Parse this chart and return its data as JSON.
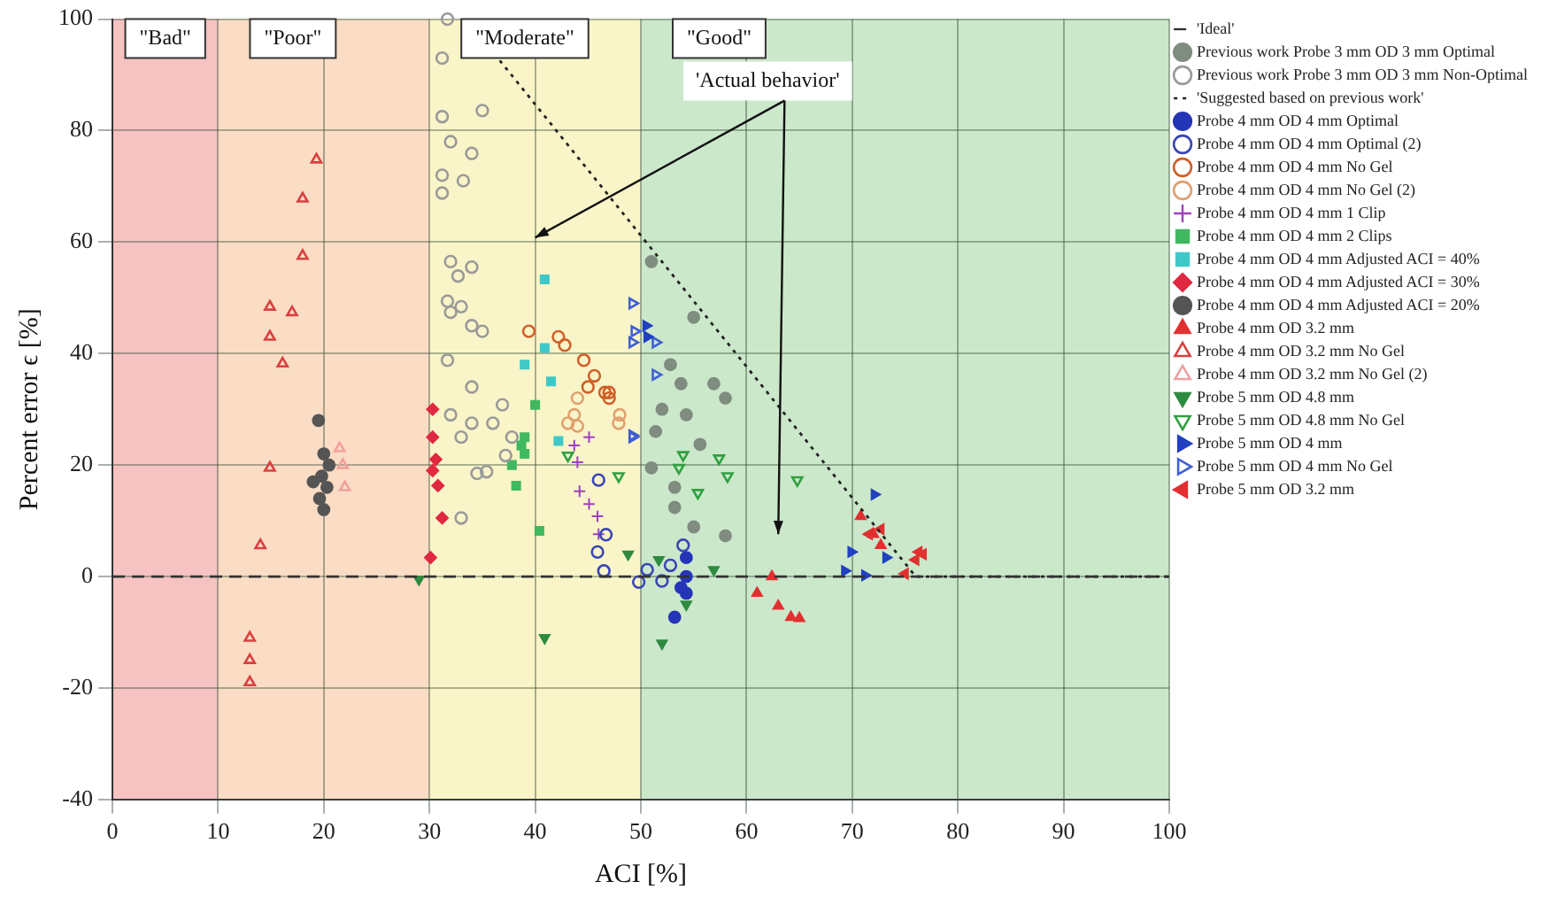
{
  "chart_data": {
    "type": "scatter",
    "xlabel": "ACI [%]",
    "ylabel": "Percent error ϵ [%]",
    "xlim": [
      0,
      100
    ],
    "xticks": [
      0,
      10,
      20,
      30,
      40,
      50,
      60,
      70,
      80,
      90,
      100
    ],
    "ylim": [
      -40,
      100
    ],
    "yticks": [
      -40,
      -20,
      0,
      20,
      40,
      60,
      80,
      100
    ],
    "grid": true,
    "legend": "top right",
    "bands": [
      {
        "axis": "x",
        "from": 0,
        "to": 10,
        "label": "\"Bad\"",
        "color": "#f6c2c2"
      },
      {
        "axis": "x",
        "from": 10,
        "to": 30,
        "label": "\"Poor\"",
        "color": "#fbdcc4"
      },
      {
        "axis": "x",
        "from": 30,
        "to": 50,
        "label": "\"Moderate\"",
        "color": "#faf5c8"
      },
      {
        "axis": "x",
        "from": 50,
        "to": 100,
        "label": "\"Good\"",
        "color": "#cbe8cb"
      }
    ],
    "annotations": [
      "'Actual behavior'"
    ],
    "series": [
      {
        "name": "'Ideal'",
        "type": "line",
        "marker": "none",
        "line_style": "dashed",
        "color": "#333333",
        "x": [
          0,
          100
        ],
        "values": [
          0,
          0
        ]
      },
      {
        "name": "Previous work Probe 3 mm OD 3 mm Optimal",
        "marker": "circle",
        "color": "#7f8c7f",
        "x": [
          51,
          55,
          52.8,
          53.8,
          56.9,
          58,
          52,
          54.3,
          51.4,
          55.6,
          51,
          53.2,
          55,
          58,
          53.2
        ],
        "values": [
          56.5,
          46.5,
          38,
          34.6,
          34.6,
          32,
          30,
          29,
          26,
          23.7,
          19.5,
          12.4,
          8.9,
          7.3,
          16
        ]
      },
      {
        "name": "Previous work Probe 3 mm OD 3 mm Non-Optimal",
        "marker": "circle-open",
        "color": "#9a9a9a",
        "x": [
          31.7,
          31.2,
          35,
          31.2,
          32,
          34,
          31.2,
          33.2,
          31.2,
          32,
          34,
          32.7,
          31.7,
          33,
          32,
          34,
          35,
          31.7,
          34,
          32,
          34,
          33,
          36.9,
          36,
          35.4,
          34.5,
          33,
          37.8,
          37.2
        ],
        "values": [
          100,
          93,
          83.6,
          82.5,
          78,
          75.9,
          72,
          71,
          68.8,
          56.5,
          55.5,
          53.9,
          49.4,
          48.4,
          47.4,
          45,
          44,
          38.8,
          34,
          29,
          27.5,
          25,
          30.8,
          27.5,
          18.8,
          18.5,
          10.5,
          25,
          21.7
        ]
      },
      {
        "name": "'Suggested based on previous work'",
        "type": "line",
        "marker": "none",
        "line_style": "dotted",
        "color": "#222222",
        "x": [
          33.5,
          76,
          100
        ],
        "values": [
          100,
          0,
          0
        ]
      },
      {
        "name": "Probe 4 mm OD 4 mm Optimal",
        "marker": "circle",
        "color": "#2535b8",
        "x": [
          54.3,
          53.8,
          54.3,
          53.2,
          54.3
        ],
        "values": [
          0,
          -2,
          3.4,
          -7.3,
          -3
        ]
      },
      {
        "name": "Probe 4 mm OD 4 mm Optimal (2)",
        "marker": "circle-open",
        "color": "#3a45b5",
        "x": [
          45.9,
          46.5,
          46.7,
          46,
          50.6,
          52,
          54,
          49.8,
          52.8
        ],
        "values": [
          4.4,
          1,
          7.5,
          17.3,
          1.2,
          -0.8,
          5.6,
          -1,
          2
        ]
      },
      {
        "name": "Probe 4 mm OD 4 mm No Gel",
        "marker": "circle-open",
        "color": "#d0602a",
        "x": [
          39.4,
          42.2,
          42.8,
          44.6,
          45.6,
          46.6,
          47,
          45,
          47
        ],
        "values": [
          44,
          43,
          41.5,
          38.8,
          36,
          33,
          32,
          34,
          33
        ]
      },
      {
        "name": "Probe 4 mm OD 4 mm No Gel (2)",
        "marker": "circle-open",
        "color": "#e0a070",
        "x": [
          44,
          43.7,
          44,
          43.1,
          47.9,
          48
        ],
        "values": [
          32,
          29,
          27,
          27.5,
          27.5,
          29
        ]
      },
      {
        "name": "Probe 4 mm OD 4 mm 1 Clip",
        "marker": "cross",
        "color": "#a040c0",
        "x": [
          45.1,
          44,
          44.2,
          45.1,
          45.9,
          46,
          43.7
        ],
        "values": [
          25,
          20.5,
          15.3,
          13,
          10.8,
          7.6,
          23.5
        ]
      },
      {
        "name": "Probe 4 mm OD 4 mm 2 Clips",
        "marker": "square",
        "color": "#40b860",
        "x": [
          40,
          39,
          39,
          37.8,
          38.2,
          40.4,
          38.7
        ],
        "values": [
          30.8,
          25,
          22,
          20,
          16.3,
          8.2,
          23.5
        ]
      },
      {
        "name": "Probe 4 mm OD 4 mm Adjusted ACI = 40%",
        "marker": "square",
        "color": "#40c8c8",
        "x": [
          40.9,
          39,
          40.9,
          41.5,
          42.2
        ],
        "values": [
          53.3,
          38,
          41,
          35,
          24.3
        ]
      },
      {
        "name": "Probe 4 mm OD 4 mm Adjusted ACI = 30%",
        "marker": "diamond",
        "color": "#e02840",
        "x": [
          30.3,
          30.3,
          30.6,
          30.8,
          31.2,
          30.1,
          30.3
        ],
        "values": [
          30,
          25,
          21,
          16.3,
          10.5,
          3.4,
          19
        ]
      },
      {
        "name": "Probe 4 mm OD 4 mm Adjusted ACI = 20%",
        "marker": "circle",
        "color": "#555555",
        "x": [
          19.5,
          20,
          19.8,
          20.3,
          19.6,
          20,
          20.5,
          19
        ],
        "values": [
          28,
          22,
          18,
          16,
          14,
          12,
          20,
          17
        ]
      },
      {
        "name": "Probe 4 mm OD 3.2 mm",
        "marker": "triangle",
        "color": "#e03030",
        "x": [
          62.4,
          61,
          63,
          64.2,
          65,
          70.8,
          72,
          72.7
        ],
        "values": [
          0,
          -3,
          -5.3,
          -7.3,
          -7.5,
          10.8,
          7.6,
          5.6
        ]
      },
      {
        "name": "Probe 4 mm OD 3.2 mm No Gel",
        "marker": "triangle-open",
        "color": "#d84040",
        "x": [
          19.3,
          18,
          18,
          14.9,
          17,
          14.9,
          16.1,
          14.9,
          14,
          13,
          13,
          13
        ],
        "values": [
          74.8,
          67.8,
          57.5,
          48.4,
          47.4,
          43,
          38.2,
          19.5,
          5.6,
          -11,
          -15,
          -19
        ]
      },
      {
        "name": "Probe 4 mm OD 3.2 mm No Gel (2)",
        "marker": "triangle-open",
        "color": "#f0a0a0",
        "x": [
          21.8,
          22,
          21.5
        ],
        "values": [
          20,
          16,
          23
        ]
      },
      {
        "name": "Probe 5 mm OD 4.8 mm",
        "marker": "triangle-down",
        "color": "#2e8b40",
        "x": [
          29,
          40.9,
          48.8,
          52,
          51.7,
          56.9,
          54.3
        ],
        "values": [
          -0.5,
          -11,
          4,
          -12,
          3,
          1.2,
          -5
        ]
      },
      {
        "name": "Probe 5 mm OD 4.8 mm No Gel",
        "marker": "triangle-down-open",
        "color": "#30a040",
        "x": [
          54,
          57.4,
          58.2,
          64.8,
          55.4,
          53.6,
          43.1,
          47.9
        ],
        "values": [
          21.8,
          21.2,
          18,
          17.3,
          15,
          19.5,
          21.7,
          18
        ]
      },
      {
        "name": "Probe 5 mm OD 4 mm",
        "marker": "triangle-right",
        "color": "#2040c0",
        "x": [
          50.5,
          50.6,
          72.1,
          69.9,
          69.3,
          73.2,
          71.2
        ],
        "values": [
          45,
          43,
          14.7,
          4.4,
          1,
          3.4,
          0.2
        ]
      },
      {
        "name": "Probe 5 mm OD 4 mm No Gel",
        "marker": "triangle-right-open",
        "color": "#4060d0",
        "x": [
          49.2,
          49.4,
          49.2,
          51.4,
          51.4,
          49.2,
          49.2
        ],
        "values": [
          49,
          44,
          42,
          42,
          36.2,
          25.3,
          25
        ]
      },
      {
        "name": "Probe 5 mm OD 3.2 mm",
        "marker": "triangle-left",
        "color": "#e03030",
        "x": [
          76.3,
          76,
          76.7,
          71.6,
          72.7,
          75
        ],
        "values": [
          4.4,
          3,
          4,
          7.6,
          8.5,
          0.5
        ]
      }
    ]
  }
}
